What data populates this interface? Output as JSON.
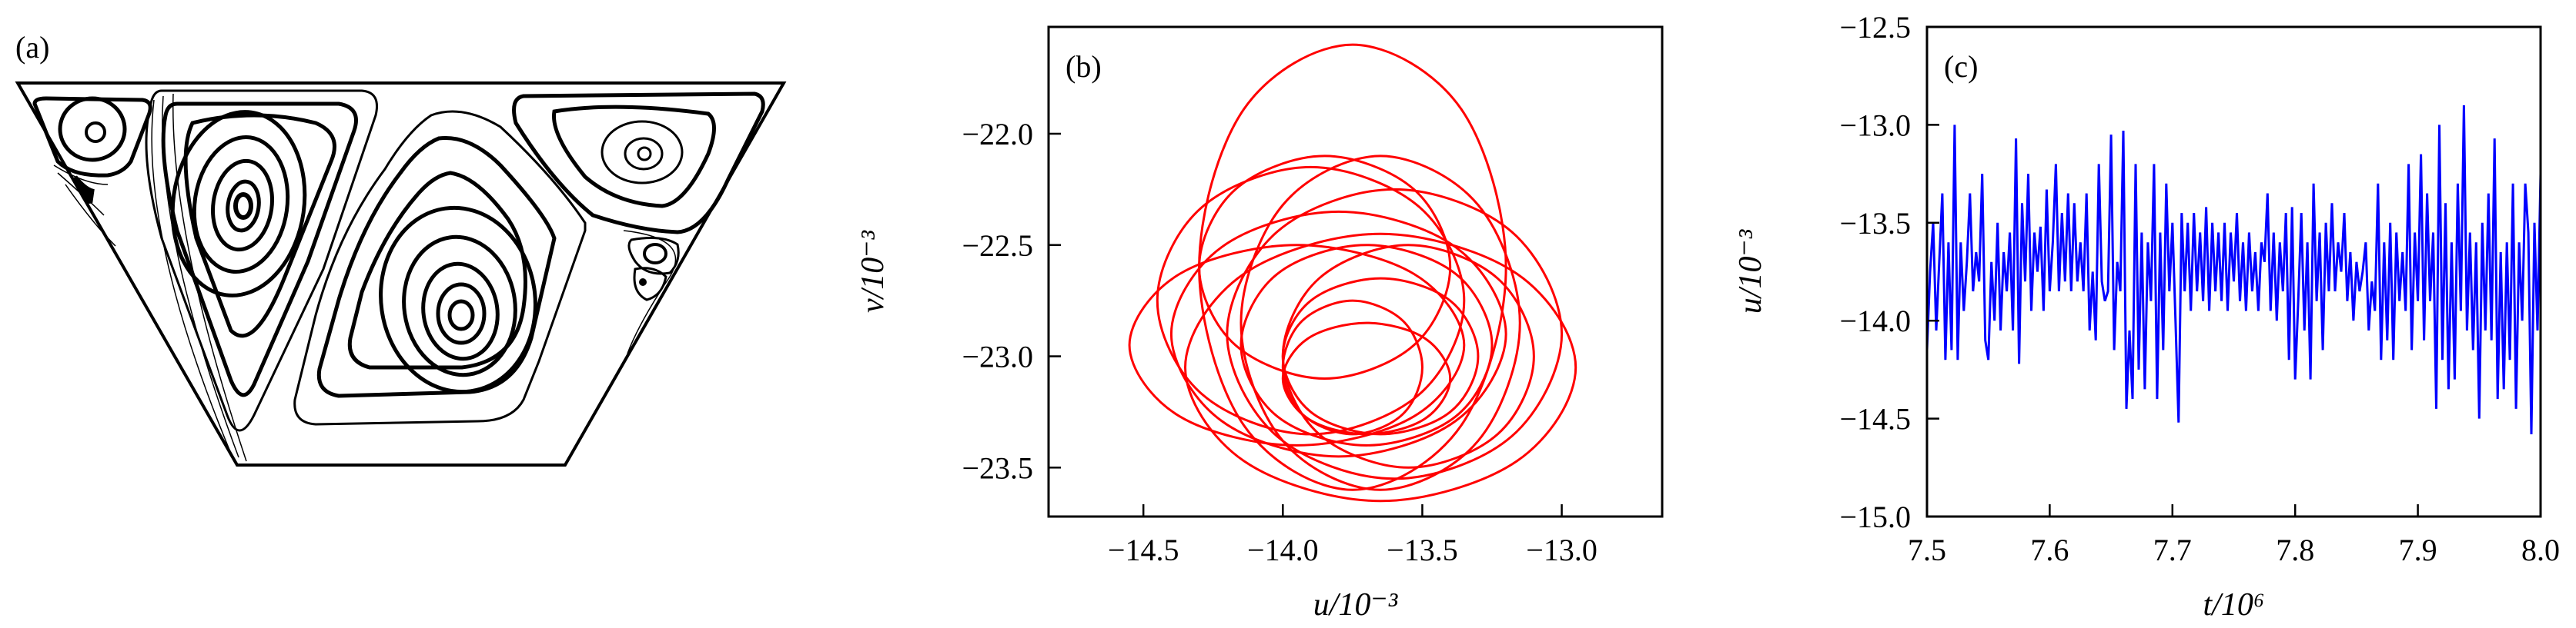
{
  "panel_a": {
    "label": "(a)"
  },
  "chart_data": [
    {
      "panel_label": "(b)",
      "type": "line",
      "xlabel": "u/10⁻³",
      "ylabel": "v/10⁻³",
      "xlim": [
        -14.84,
        -12.64
      ],
      "ylim": [
        -23.72,
        -21.52
      ],
      "xticks": [
        -14.5,
        -14.0,
        -13.5,
        -13.0
      ],
      "xtick_labels": [
        "−14.5",
        "−14.0",
        "−13.5",
        "−13.0"
      ],
      "yticks": [
        -22.0,
        -22.5,
        -23.0,
        -23.5
      ],
      "ytick_labels": [
        "−22.0",
        "−22.5",
        "−23.0",
        "−23.5"
      ],
      "grid": false,
      "color": "#ff0000",
      "u": [
        -13.25,
        -13.38,
        -13.7,
        -14.02,
        -14.15,
        -14.02,
        -13.7,
        -13.38,
        -13.2,
        -13.36,
        -13.75,
        -14.14,
        -14.3,
        -14.14,
        -13.75,
        -13.36,
        -13.2,
        -13.38,
        -13.8,
        -14.22,
        -14.4,
        -14.22,
        -13.8,
        -13.38,
        -13.3,
        -13.4,
        -13.65,
        -13.9,
        -14.0,
        -13.9,
        -13.65,
        -13.4,
        -13.35,
        -13.51,
        -13.9,
        -14.29,
        -14.45,
        -14.29,
        -13.9,
        -13.51,
        -13.0,
        -13.18,
        -13.6,
        -14.02,
        -14.2,
        -14.02,
        -13.6,
        -13.18,
        -13.5,
        -13.57,
        -13.75,
        -13.93,
        -14.0,
        -13.93,
        -13.75,
        -13.57,
        -13.4,
        -13.53,
        -13.85,
        -14.17,
        -14.3,
        -14.17,
        -13.85,
        -13.53,
        -13.1,
        -13.23,
        -13.55,
        -13.87,
        -14.0,
        -13.87,
        -13.55,
        -13.23,
        -13.35,
        -13.53,
        -13.95,
        -14.37,
        -14.55,
        -14.37,
        -13.95,
        -13.53,
        -13.4,
        -13.49,
        -13.7,
        -13.91,
        -14.0,
        -13.91,
        -13.7,
        -13.49,
        -13.15,
        -13.3,
        -13.65,
        -14.0,
        -14.15,
        -14.0,
        -13.65,
        -13.3,
        -12.95,
        -13.16,
        -13.65,
        -14.14,
        -14.35,
        -14.14,
        -13.65,
        -13.16
      ],
      "v": [
        -22.95,
        -22.63,
        -22.5,
        -22.63,
        -22.95,
        -23.27,
        -23.4,
        -23.27,
        -22.6,
        -21.89,
        -21.6,
        -21.89,
        -22.6,
        -23.31,
        -23.6,
        -23.31,
        -22.9,
        -22.51,
        -22.35,
        -22.51,
        -22.9,
        -23.29,
        -23.45,
        -23.29,
        -23.0,
        -22.75,
        -22.65,
        -22.75,
        -23.0,
        -23.25,
        -23.35,
        -23.25,
        -22.75,
        -22.33,
        -22.15,
        -22.33,
        -22.75,
        -23.17,
        -23.35,
        -23.17,
        -22.9,
        -22.44,
        -22.25,
        -22.44,
        -22.9,
        -23.36,
        -23.55,
        -23.36,
        -23.05,
        -22.84,
        -22.75,
        -22.84,
        -23.05,
        -23.26,
        -23.35,
        -23.26,
        -22.6,
        -22.25,
        -22.1,
        -22.25,
        -22.6,
        -22.95,
        -23.1,
        -22.95,
        -23.0,
        -22.65,
        -22.5,
        -22.65,
        -23.0,
        -23.35,
        -23.5,
        -23.35,
        -22.95,
        -22.63,
        -22.5,
        -22.63,
        -22.95,
        -23.27,
        -23.4,
        -23.27,
        -23.1,
        -22.92,
        -22.85,
        -22.92,
        -23.1,
        -23.28,
        -23.35,
        -23.28,
        -22.85,
        -22.32,
        -22.1,
        -22.32,
        -22.85,
        -23.38,
        -23.6,
        -23.38,
        -23.05,
        -22.63,
        -22.45,
        -22.63,
        -23.05,
        -23.47,
        -23.65,
        -23.47
      ]
    },
    {
      "panel_label": "(c)",
      "type": "line",
      "xlabel": "t/10⁶",
      "ylabel": "u/10⁻³",
      "xlim": [
        7.5,
        8.0
      ],
      "ylim": [
        -15.0,
        -12.5
      ],
      "xticks": [
        7.5,
        7.6,
        7.7,
        7.8,
        7.9,
        8.0
      ],
      "xtick_labels": [
        "7.5",
        "7.6",
        "7.7",
        "7.8",
        "7.9",
        "8.0"
      ],
      "yticks": [
        -12.5,
        -13.0,
        -13.5,
        -14.0,
        -14.5,
        -15.0
      ],
      "ytick_labels": [
        "−12.5",
        "−13.0",
        "−13.5",
        "−14.0",
        "−14.5",
        "−15.0"
      ],
      "grid": false,
      "color": "#0000ff",
      "x_start": 7.5,
      "x_step": 0.0025,
      "values": [
        -14.15,
        -13.75,
        -13.5,
        -14.05,
        -13.7,
        -13.35,
        -14.2,
        -13.6,
        -14.15,
        -13.0,
        -14.2,
        -13.6,
        -13.95,
        -13.7,
        -13.35,
        -13.85,
        -13.65,
        -13.8,
        -13.25,
        -14.1,
        -14.2,
        -13.7,
        -14.0,
        -13.5,
        -14.05,
        -13.65,
        -13.85,
        -13.55,
        -14.05,
        -13.07,
        -14.22,
        -13.4,
        -13.8,
        -13.25,
        -13.95,
        -13.55,
        -13.75,
        -13.52,
        -13.95,
        -13.33,
        -13.85,
        -13.6,
        -13.2,
        -13.85,
        -13.45,
        -13.8,
        -13.35,
        -13.85,
        -13.4,
        -13.8,
        -13.6,
        -13.85,
        -13.35,
        -14.05,
        -13.75,
        -14.1,
        -13.2,
        -13.8,
        -13.9,
        -13.85,
        -13.05,
        -14.15,
        -13.7,
        -13.85,
        -13.03,
        -14.45,
        -14.05,
        -14.4,
        -13.2,
        -14.25,
        -13.55,
        -14.35,
        -13.6,
        -13.9,
        -13.2,
        -14.4,
        -13.55,
        -14.15,
        -13.3,
        -13.85,
        -13.5,
        -14.0,
        -14.52,
        -13.45,
        -13.85,
        -13.5,
        -13.95,
        -13.45,
        -13.85,
        -13.55,
        -13.9,
        -13.42,
        -13.95,
        -13.5,
        -13.85,
        -13.55,
        -13.9,
        -13.5,
        -13.95,
        -13.55,
        -13.8,
        -13.45,
        -13.9,
        -13.6,
        -13.95,
        -13.55,
        -13.85,
        -13.65,
        -13.95,
        -13.6,
        -13.7,
        -13.35,
        -13.95,
        -13.55,
        -14.0,
        -13.6,
        -13.85,
        -13.45,
        -14.2,
        -13.42,
        -14.3,
        -13.9,
        -13.45,
        -14.05,
        -13.6,
        -14.3,
        -13.3,
        -13.9,
        -13.55,
        -14.15,
        -13.5,
        -13.85,
        -13.4,
        -13.85,
        -13.6,
        -13.75,
        -13.45,
        -13.9,
        -13.65,
        -14.0,
        -13.7,
        -13.85,
        -13.75,
        -13.6,
        -14.05,
        -13.8,
        -13.95,
        -13.3,
        -14.2,
        -13.6,
        -14.1,
        -13.5,
        -14.2,
        -13.55,
        -13.9,
        -13.65,
        -13.95,
        -13.2,
        -14.15,
        -13.55,
        -13.9,
        -13.15,
        -14.1,
        -13.35,
        -13.9,
        -13.55,
        -14.45,
        -13.0,
        -14.2,
        -13.4,
        -14.35,
        -13.6,
        -14.3,
        -13.3,
        -13.95,
        -12.9,
        -14.05,
        -13.55,
        -14.15,
        -13.6,
        -14.5,
        -13.5,
        -14.05,
        -13.35,
        -14.1,
        -13.07,
        -14.4,
        -13.65,
        -14.35,
        -13.6,
        -14.2,
        -13.3,
        -14.45,
        -13.6,
        -14.0,
        -13.3,
        -13.55,
        -14.58,
        -13.5,
        -14.05,
        -13.25
      ]
    }
  ]
}
